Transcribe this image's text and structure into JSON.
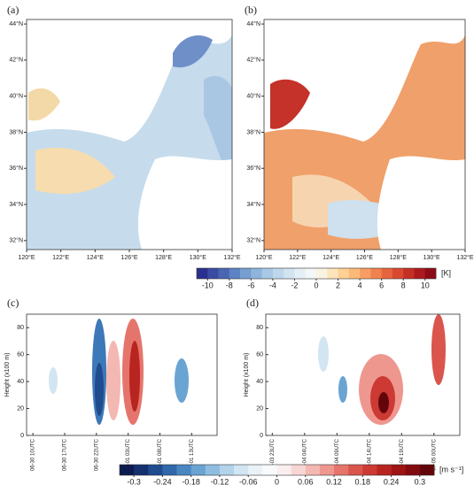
{
  "chart_data": [
    {
      "type": "map",
      "panel": "(a)",
      "xlim": [
        120,
        132
      ],
      "ylim": [
        31.5,
        44.25
      ],
      "xticks": [
        {
          "value": 120,
          "label": "120°E"
        },
        {
          "value": 122,
          "label": "122°E"
        },
        {
          "value": 124,
          "label": "124°E"
        },
        {
          "value": 126,
          "label": "126°E"
        },
        {
          "value": 128,
          "label": "128°E"
        },
        {
          "value": 130,
          "label": "130°E"
        },
        {
          "value": 132,
          "label": "132°E"
        }
      ],
      "yticks": [
        {
          "value": 32,
          "label": "32°N"
        },
        {
          "value": 34,
          "label": "34°N"
        },
        {
          "value": 36,
          "label": "36°N"
        },
        {
          "value": 38,
          "label": "38°N"
        },
        {
          "value": 40,
          "label": "40°N"
        },
        {
          "value": 42,
          "label": "42°N"
        },
        {
          "value": 44,
          "label": "44°N"
        }
      ]
    },
    {
      "type": "map",
      "panel": "(b)",
      "xlim": [
        120,
        132
      ],
      "ylim": [
        31.5,
        44.25
      ],
      "xticks": [
        {
          "value": 120,
          "label": "120°E"
        },
        {
          "value": 122,
          "label": "122°E"
        },
        {
          "value": 124,
          "label": "124°E"
        },
        {
          "value": 126,
          "label": "126°E"
        },
        {
          "value": 128,
          "label": "128°E"
        },
        {
          "value": 130,
          "label": "130°E"
        },
        {
          "value": 132,
          "label": "132°E"
        }
      ],
      "yticks": [
        {
          "value": 32,
          "label": "32°N"
        },
        {
          "value": 34,
          "label": "34°N"
        },
        {
          "value": 36,
          "label": "36°N"
        },
        {
          "value": 38,
          "label": "38°N"
        },
        {
          "value": 40,
          "label": "40°N"
        },
        {
          "value": 42,
          "label": "42°N"
        },
        {
          "value": 44,
          "label": "44°N"
        }
      ]
    },
    {
      "type": "colorbar",
      "xlim": [
        -11,
        11
      ],
      "unit": "[K]",
      "xticks": [
        -10,
        -8,
        -6,
        -4,
        -2,
        0,
        2,
        4,
        6,
        8,
        10
      ],
      "colors": [
        "#2b2f8f",
        "#3a4ba3",
        "#4a66b3",
        "#5d83c4",
        "#769fd1",
        "#8fb5dc",
        "#a8c8e5",
        "#bfd7ec",
        "#d3e4f1",
        "#e5eff6",
        "#f3f7f7",
        "#fbf3e2",
        "#fde4bb",
        "#fdd094",
        "#fbb879",
        "#f79d63",
        "#f1824f",
        "#e7653e",
        "#d9492f",
        "#c62f25",
        "#ad1a1d",
        "#8e0c17"
      ]
    },
    {
      "type": "contour",
      "panel": "(c)",
      "ylabel": "Height (x100 m)",
      "ylim": [
        0,
        90
      ],
      "yticks": [
        0,
        20,
        40,
        60,
        80
      ],
      "categories": [
        "06-30 10UTC",
        "06-30 17UTC",
        "06-30 22UTC",
        "07-01 03UTC",
        "07-01 08UTC",
        "07-01 13UTC"
      ]
    },
    {
      "type": "contour",
      "panel": "(d)",
      "ylabel": "Height (x100 m)",
      "ylim": [
        0,
        90
      ],
      "yticks": [
        0,
        20,
        40,
        60,
        80
      ],
      "categories": [
        "07-03 23UTC",
        "07-04 04UTC",
        "07-04 09UTC",
        "07-04 14UTC",
        "07-04 19UTC",
        "07-05 00UTC"
      ]
    },
    {
      "type": "colorbar",
      "xlim": [
        -0.33,
        0.33
      ],
      "unit": "[m s⁻¹]",
      "xticks": [
        -0.3,
        -0.24,
        -0.18,
        -0.12,
        -0.06,
        0,
        0.06,
        0.12,
        0.18,
        0.24,
        0.3
      ],
      "colors": [
        "#0d1a4f",
        "#14306f",
        "#1f4b8f",
        "#2f69ab",
        "#4a87c2",
        "#6aa4d3",
        "#8ebde0",
        "#b2d3ea",
        "#d2e5f2",
        "#eaf2f8",
        "#f8fafc",
        "#fbeeee",
        "#f8d6d3",
        "#f4b8b2",
        "#ee978f",
        "#e5756c",
        "#da554c",
        "#cc3a33",
        "#b8241f",
        "#9f1414",
        "#820b0f",
        "#63060b"
      ]
    }
  ]
}
